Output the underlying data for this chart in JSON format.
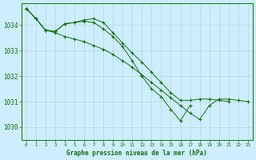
{
  "title": "Graphe pression niveau de la mer (hPa)",
  "background_color": "#cceeff",
  "grid_color": "#b8d8d8",
  "line_color": "#1a6b1a",
  "ylim": [
    1029.5,
    1034.85
  ],
  "yticks": [
    1030,
    1031,
    1032,
    1033,
    1034
  ],
  "series": [
    [
      1034.65,
      1034.25,
      1033.8,
      1033.7,
      1033.55,
      1033.45,
      1033.35,
      1033.2,
      1033.05,
      1032.85,
      1032.6,
      1032.35,
      1032.05,
      1031.75,
      1031.45,
      1031.15,
      1030.85,
      1030.55,
      1030.3,
      1030.85,
      1031.1,
      1031.1,
      1031.05,
      1031.0
    ],
    [
      1034.65,
      1034.25,
      1033.8,
      1033.75,
      1034.05,
      1034.1,
      1034.15,
      1034.1,
      1033.85,
      1033.55,
      1033.15,
      1032.6,
      1032.0,
      1031.5,
      1031.2,
      1030.7,
      1030.25,
      1030.85,
      null,
      null,
      null,
      null,
      null,
      null
    ],
    [
      1034.65,
      1034.25,
      1033.8,
      1033.75,
      1034.05,
      1034.1,
      1034.2,
      1034.25,
      1034.1,
      1033.7,
      1033.3,
      1032.9,
      1032.55,
      1032.15,
      1031.75,
      1031.35,
      1031.05,
      1031.05,
      1031.1,
      1031.1,
      1031.05,
      1031.0,
      null,
      null
    ]
  ]
}
